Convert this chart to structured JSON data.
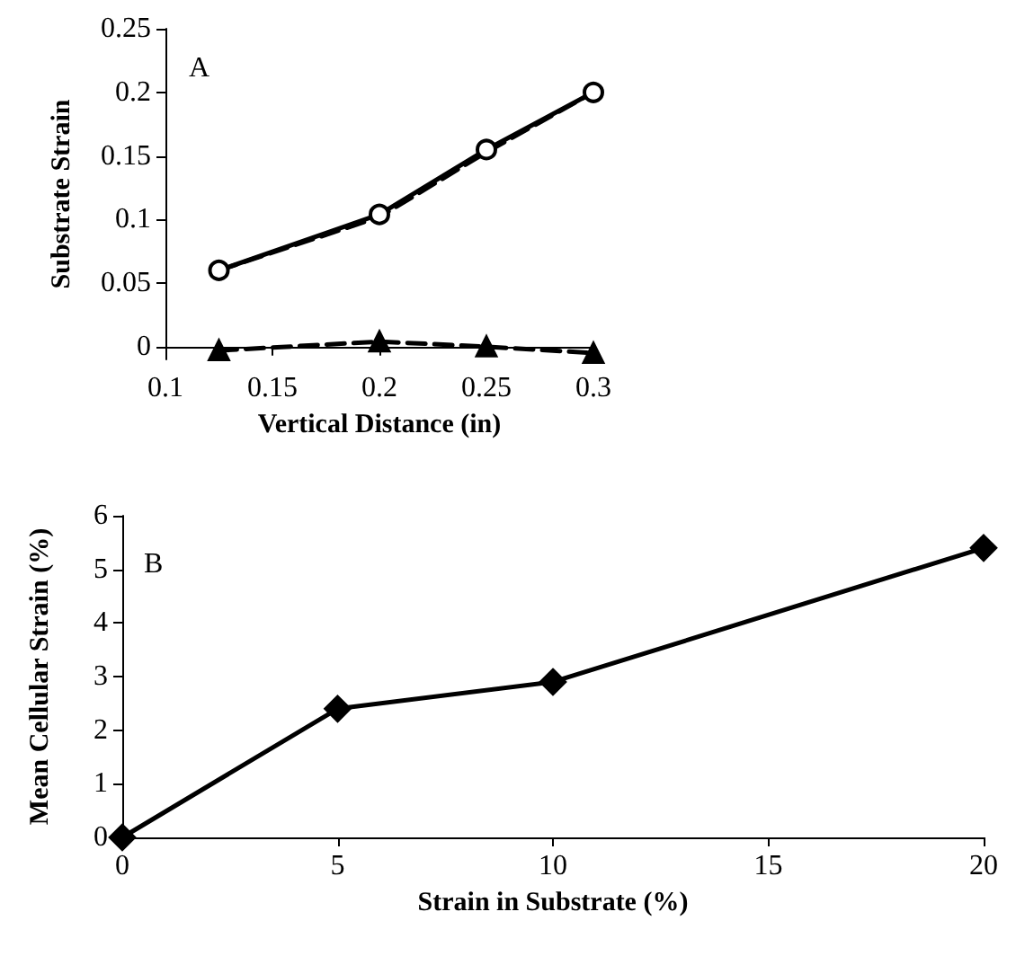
{
  "chart_data": [
    {
      "type": "line",
      "xlabel": "Vertical Distance (in)",
      "ylabel": "Substrate Strain",
      "annotations": [
        "A"
      ],
      "xlim": [
        0.1,
        0.3
      ],
      "xticks": [
        0.1,
        0.15,
        0.2,
        0.25,
        0.3
      ],
      "ylim": [
        -0.01,
        0.25
      ],
      "yticks": [
        0,
        0.05,
        0.1,
        0.15,
        0.2,
        0.25
      ],
      "grid": false,
      "series": [
        {
          "color": "#000000",
          "x": [
            0.125,
            0.2,
            0.25,
            0.3
          ],
          "values": [
            0.06,
            0.104,
            0.155,
            0.2
          ],
          "marker": "circle",
          "line_style": "solid"
        },
        {
          "color": "#000000",
          "x": [
            0.125,
            0.2,
            0.25,
            0.3
          ],
          "values": [
            0.06,
            0.102,
            0.153,
            0.2
          ],
          "marker": "none",
          "line_style": "dashed"
        },
        {
          "color": "#000000",
          "x": [
            0.125,
            0.2,
            0.25,
            0.3
          ],
          "values": [
            -0.003,
            0.004,
            0.0,
            -0.005
          ],
          "marker": "triangle",
          "line_style": "dashed"
        }
      ]
    },
    {
      "type": "line",
      "xlabel": "Strain in Substrate (%)",
      "ylabel": "Mean Cellular Strain (%)",
      "annotations": [
        "B"
      ],
      "xlim": [
        0,
        20
      ],
      "xticks": [
        0,
        5,
        10,
        15,
        20
      ],
      "ylim": [
        0,
        6
      ],
      "yticks": [
        0,
        1,
        2,
        3,
        4,
        5,
        6
      ],
      "grid": false,
      "series": [
        {
          "color": "#000000",
          "x": [
            0,
            5,
            10,
            20
          ],
          "values": [
            0,
            2.4,
            2.9,
            5.4
          ],
          "marker": "diamond",
          "line_style": "solid"
        }
      ]
    }
  ]
}
